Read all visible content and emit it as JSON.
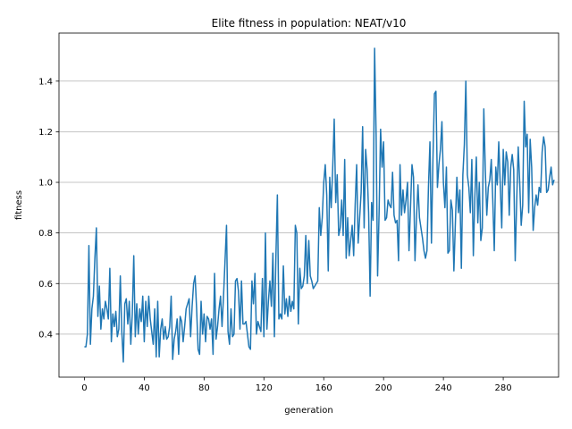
{
  "chart_data": {
    "type": "line",
    "title": "Elite fitness in population: NEAT/v10",
    "xlabel": "generation",
    "ylabel": "fitness",
    "xlim": [
      -17,
      317
    ],
    "ylim": [
      0.23,
      1.59
    ],
    "xticks": [
      0,
      40,
      80,
      120,
      160,
      200,
      240,
      280
    ],
    "yticks": [
      0.4,
      0.6,
      0.8,
      1.0,
      1.2,
      1.4
    ],
    "ytick_labels": [
      "0.4",
      "0.6",
      "0.8",
      "1.0",
      "1.2",
      "1.4"
    ],
    "grid": "horizontal",
    "legend": "none",
    "series": [
      {
        "color": "#1f77b4",
        "x_start": 0,
        "x_step": 1,
        "values": [
          0.35,
          0.35,
          0.4,
          0.75,
          0.36,
          0.5,
          0.55,
          0.7,
          0.82,
          0.47,
          0.59,
          0.42,
          0.5,
          0.46,
          0.53,
          0.5,
          0.46,
          0.66,
          0.37,
          0.48,
          0.43,
          0.49,
          0.39,
          0.42,
          0.63,
          0.41,
          0.29,
          0.52,
          0.54,
          0.44,
          0.53,
          0.36,
          0.48,
          0.71,
          0.39,
          0.52,
          0.4,
          0.5,
          0.45,
          0.55,
          0.37,
          0.53,
          0.43,
          0.55,
          0.46,
          0.41,
          0.36,
          0.5,
          0.31,
          0.53,
          0.31,
          0.42,
          0.46,
          0.38,
          0.43,
          0.38,
          0.39,
          0.43,
          0.55,
          0.3,
          0.38,
          0.41,
          0.46,
          0.32,
          0.47,
          0.45,
          0.37,
          0.43,
          0.5,
          0.52,
          0.54,
          0.39,
          0.51,
          0.6,
          0.63,
          0.5,
          0.34,
          0.32,
          0.53,
          0.4,
          0.48,
          0.37,
          0.47,
          0.46,
          0.42,
          0.46,
          0.32,
          0.64,
          0.38,
          0.43,
          0.5,
          0.55,
          0.43,
          0.55,
          0.69,
          0.83,
          0.41,
          0.36,
          0.5,
          0.39,
          0.4,
          0.61,
          0.62,
          0.57,
          0.42,
          0.61,
          0.44,
          0.44,
          0.45,
          0.4,
          0.35,
          0.34,
          0.61,
          0.52,
          0.64,
          0.4,
          0.45,
          0.43,
          0.41,
          0.62,
          0.39,
          0.8,
          0.42,
          0.53,
          0.61,
          0.51,
          0.72,
          0.39,
          0.7,
          0.95,
          0.46,
          0.48,
          0.46,
          0.67,
          0.48,
          0.54,
          0.47,
          0.55,
          0.49,
          0.53,
          0.5,
          0.83,
          0.8,
          0.44,
          0.66,
          0.58,
          0.59,
          0.63,
          0.79,
          0.6,
          0.77,
          0.63,
          0.61,
          0.58,
          0.59,
          0.6,
          0.61,
          0.9,
          0.79,
          0.86,
          1.0,
          1.07,
          0.95,
          0.65,
          1.02,
          0.9,
          1.06,
          1.25,
          0.92,
          1.03,
          0.79,
          0.82,
          0.93,
          0.79,
          1.09,
          0.7,
          0.86,
          0.71,
          0.77,
          0.83,
          0.71,
          0.91,
          1.07,
          0.76,
          0.86,
          0.96,
          1.22,
          0.82,
          1.13,
          1.05,
          0.88,
          0.55,
          0.92,
          0.85,
          1.53,
          1.19,
          0.63,
          0.88,
          1.21,
          1.06,
          1.16,
          0.85,
          0.86,
          0.93,
          0.91,
          0.9,
          1.04,
          0.87,
          0.84,
          0.85,
          0.69,
          1.07,
          0.87,
          0.97,
          0.88,
          0.93,
          1.0,
          0.73,
          0.9,
          1.07,
          1.02,
          0.69,
          0.86,
          0.99,
          0.86,
          0.82,
          0.78,
          0.73,
          0.7,
          0.73,
          0.98,
          1.16,
          0.76,
          1.09,
          1.35,
          1.36,
          0.98,
          1.07,
          1.13,
          1.24,
          1.0,
          0.9,
          1.06,
          0.72,
          0.73,
          0.93,
          0.89,
          0.65,
          0.84,
          1.02,
          0.88,
          0.97,
          0.66,
          1.03,
          1.15,
          1.4,
          1.03,
          0.98,
          0.88,
          1.09,
          0.71,
          0.94,
          1.1,
          0.84,
          1.0,
          0.77,
          0.82,
          1.29,
          1.05,
          0.87,
          0.98,
          1.01,
          1.09,
          0.93,
          0.73,
          1.06,
          0.99,
          1.16,
          0.99,
          0.82,
          1.13,
          0.99,
          1.12,
          1.08,
          0.87,
          1.06,
          1.11,
          1.05,
          0.69,
          0.93,
          1.14,
          1.0,
          0.83,
          0.91,
          1.32,
          1.14,
          1.19,
          0.88,
          1.17,
          1.06,
          0.81,
          0.9,
          0.95,
          0.91,
          0.98,
          0.96,
          1.12,
          1.18,
          1.14,
          0.96,
          0.97,
          1.02,
          1.06,
          0.99,
          1.01
        ]
      }
    ]
  }
}
